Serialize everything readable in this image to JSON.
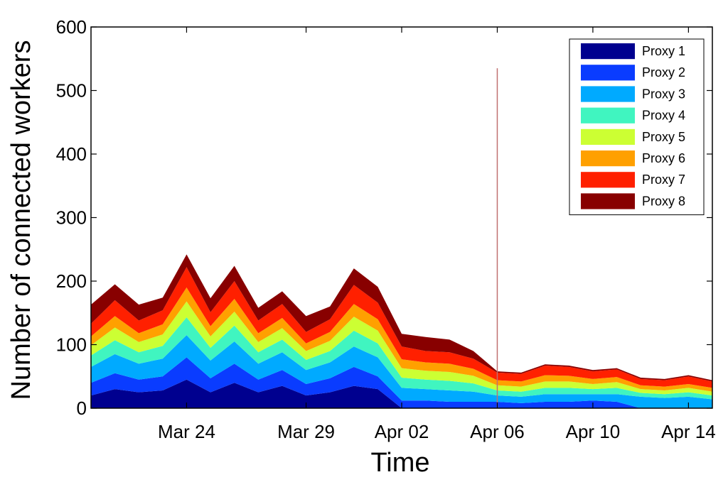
{
  "chart_data": {
    "type": "area",
    "stacked": true,
    "xlabel": "Time",
    "ylabel": "Number of connected workers",
    "ylim": [
      0,
      600
    ],
    "yticks": [
      0,
      100,
      200,
      300,
      400,
      500,
      600
    ],
    "xlim": [
      "2013-03-20",
      "2013-04-15"
    ],
    "xtick_labels": [
      "Mar 24",
      "Mar 29",
      "Apr 02",
      "Apr 06",
      "Apr 10",
      "Apr 14"
    ],
    "xtick_dates": [
      "2013-03-24",
      "2013-03-29",
      "2013-04-02",
      "2013-04-06",
      "2013-04-10",
      "2013-04-14"
    ],
    "grid": false,
    "legend_position": "top-right",
    "x": [
      "2013-03-20",
      "2013-03-21",
      "2013-03-22",
      "2013-03-23",
      "2013-03-24",
      "2013-03-25",
      "2013-03-26",
      "2013-03-27",
      "2013-03-28",
      "2013-03-29",
      "2013-03-30",
      "2013-03-31",
      "2013-04-01",
      "2013-04-02",
      "2013-04-03",
      "2013-04-04",
      "2013-04-05",
      "2013-04-06",
      "2013-04-07",
      "2013-04-08",
      "2013-04-09",
      "2013-04-10",
      "2013-04-11",
      "2013-04-12",
      "2013-04-13",
      "2013-04-14",
      "2013-04-15"
    ],
    "series": [
      {
        "name": "Proxy 1",
        "color": "#00008f",
        "values": [
          20,
          30,
          25,
          28,
          45,
          25,
          40,
          25,
          35,
          20,
          25,
          35,
          30,
          0,
          0,
          0,
          0,
          0,
          0,
          0,
          0,
          0,
          0,
          0,
          0,
          0,
          0
        ]
      },
      {
        "name": "Proxy 2",
        "color": "#0a3cff",
        "values": [
          20,
          25,
          20,
          22,
          35,
          22,
          30,
          20,
          25,
          18,
          22,
          30,
          20,
          12,
          12,
          10,
          10,
          10,
          8,
          10,
          10,
          12,
          10,
          0,
          0,
          0,
          0
        ]
      },
      {
        "name": "Proxy 3",
        "color": "#00aaff",
        "values": [
          25,
          30,
          25,
          28,
          35,
          28,
          35,
          25,
          28,
          22,
          25,
          32,
          30,
          20,
          18,
          18,
          16,
          10,
          10,
          12,
          12,
          10,
          12,
          18,
          16,
          18,
          14
        ]
      },
      {
        "name": "Proxy 4",
        "color": "#40f5c0",
        "values": [
          18,
          22,
          18,
          20,
          28,
          20,
          25,
          18,
          20,
          16,
          18,
          25,
          22,
          16,
          15,
          15,
          13,
          8,
          8,
          10,
          10,
          8,
          10,
          6,
          6,
          7,
          6
        ]
      },
      {
        "name": "Proxy 5",
        "color": "#ccff33",
        "values": [
          16,
          20,
          16,
          18,
          25,
          18,
          22,
          16,
          18,
          14,
          16,
          22,
          20,
          15,
          14,
          14,
          12,
          8,
          8,
          10,
          10,
          8,
          9,
          6,
          6,
          7,
          6
        ]
      },
      {
        "name": "Proxy 6",
        "color": "#ffa000",
        "values": [
          14,
          18,
          14,
          16,
          22,
          16,
          20,
          14,
          16,
          12,
          14,
          20,
          18,
          14,
          13,
          13,
          11,
          8,
          8,
          10,
          9,
          8,
          8,
          6,
          6,
          6,
          6
        ]
      },
      {
        "name": "Proxy 7",
        "color": "#ff2000",
        "values": [
          20,
          25,
          20,
          22,
          32,
          22,
          28,
          20,
          22,
          18,
          20,
          30,
          26,
          20,
          18,
          18,
          16,
          12,
          12,
          15,
          14,
          12,
          12,
          10,
          10,
          12,
          10
        ]
      },
      {
        "name": "Proxy 8",
        "color": "#880000",
        "values": [
          30,
          25,
          25,
          20,
          20,
          22,
          24,
          20,
          20,
          25,
          20,
          26,
          25,
          20,
          22,
          20,
          12,
          2,
          2,
          2,
          2,
          2,
          2,
          2,
          2,
          2,
          2
        ]
      }
    ],
    "annotations": [
      {
        "description": "isolated narrow spike",
        "x": "2013-04-06",
        "y": 535
      }
    ]
  }
}
